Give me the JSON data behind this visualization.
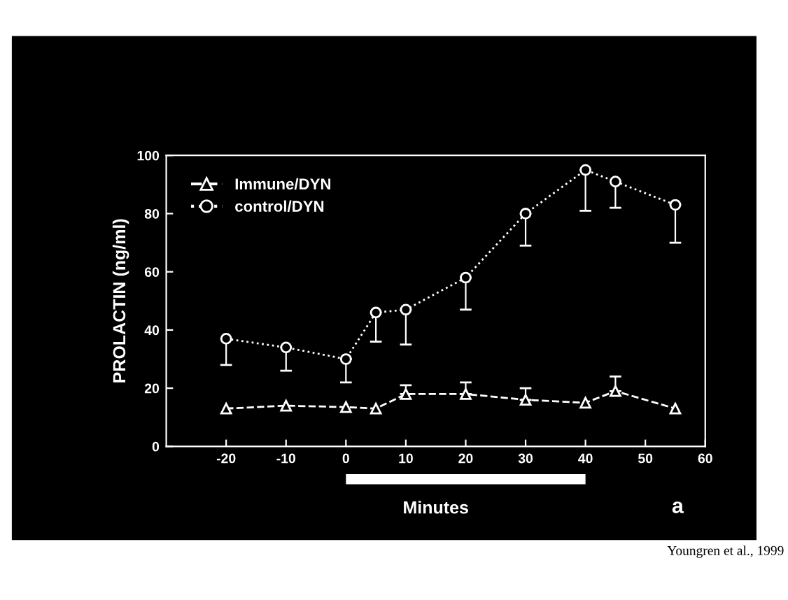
{
  "chart_data": {
    "type": "line",
    "xlabel": "Minutes",
    "ylabel": "PROLACTIN (ng/ml)",
    "x": [
      -20,
      -10,
      0,
      5,
      10,
      20,
      30,
      40,
      45,
      55
    ],
    "series": [
      {
        "name": "Immune/DYN",
        "color": "#ffffff",
        "marker": "triangle",
        "line_style": "dashed",
        "values": [
          13,
          14,
          13.5,
          13,
          18,
          18,
          16,
          15,
          19,
          13
        ],
        "errors": [
          null,
          null,
          null,
          null,
          [
            18,
            21
          ],
          [
            18,
            22
          ],
          [
            16,
            20
          ],
          null,
          [
            19,
            24
          ],
          null
        ]
      },
      {
        "name": "control/DYN",
        "color": "#ffffff",
        "marker": "circle",
        "line_style": "dotted",
        "values": [
          37,
          34,
          30,
          46,
          47,
          58,
          80,
          95,
          91,
          83
        ],
        "errors": [
          [
            28,
            37
          ],
          [
            26,
            34
          ],
          [
            22,
            30
          ],
          [
            36,
            46
          ],
          [
            35,
            47
          ],
          [
            47,
            58
          ],
          [
            69,
            80
          ],
          [
            81,
            95
          ],
          [
            82,
            91
          ],
          [
            70,
            83
          ]
        ]
      }
    ],
    "xlim": [
      -30,
      60
    ],
    "xticks": [
      -20,
      -10,
      0,
      10,
      20,
      30,
      40,
      50,
      60
    ],
    "ylim": [
      0,
      100
    ],
    "yticks": [
      0,
      20,
      40,
      60,
      80,
      100
    ],
    "grid": false,
    "legend": "top left",
    "annotations": [
      "a",
      "Youngren et al., 1999"
    ]
  }
}
